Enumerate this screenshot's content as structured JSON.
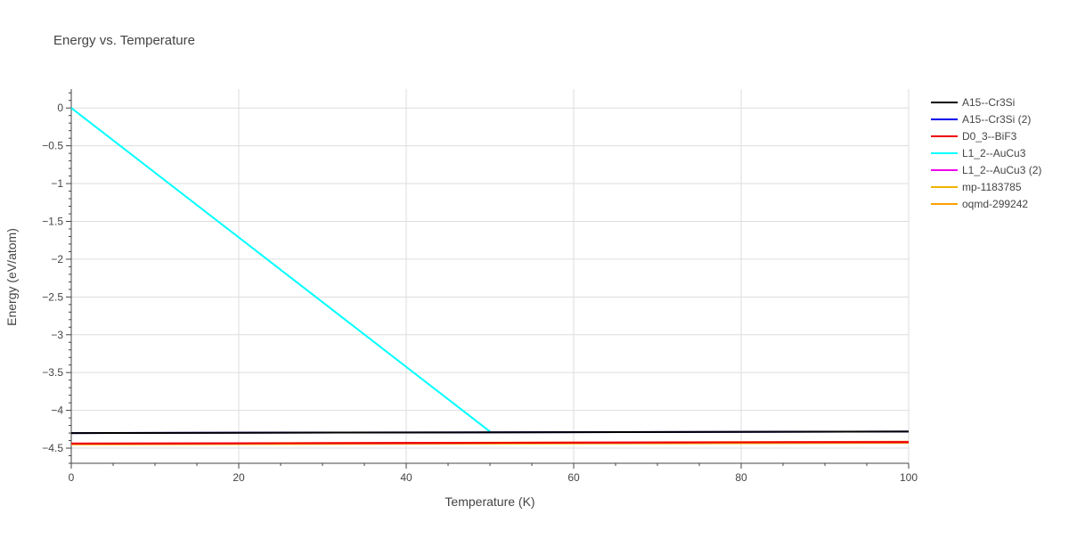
{
  "chart_data": {
    "type": "line",
    "title": "Energy vs. Temperature",
    "xlabel": "Temperature (K)",
    "ylabel": "Energy (eV/atom)",
    "xlim": [
      0,
      100
    ],
    "ylim": [
      -4.7,
      0.25
    ],
    "x_ticks": [
      0,
      20,
      40,
      60,
      80,
      100
    ],
    "x_tick_labels": [
      "0",
      "20",
      "40",
      "60",
      "80",
      "100"
    ],
    "y_ticks": [
      0,
      -0.5,
      -1,
      -1.5,
      -2,
      -2.5,
      -3,
      -3.5,
      -4,
      -4.5
    ],
    "y_tick_labels": [
      "0",
      "−0.5",
      "−1",
      "−1.5",
      "−2",
      "−2.5",
      "−3",
      "−3.5",
      "−4",
      "−4.5"
    ],
    "grid": true,
    "legend_position": "top-right",
    "series": [
      {
        "name": "A15--Cr3Si",
        "color": "#000000",
        "x": [
          0,
          100
        ],
        "y": [
          -4.3,
          -4.28
        ]
      },
      {
        "name": "A15--Cr3Si (2)",
        "color": "#0000ee",
        "x": [
          0,
          100
        ],
        "y": [
          -4.3,
          -4.28
        ]
      },
      {
        "name": "D0_3--BiF3",
        "color": "#ee0000",
        "x": [
          0,
          100
        ],
        "y": [
          -4.44,
          -4.42
        ]
      },
      {
        "name": "L1_2--AuCu3",
        "color": "#00ffff",
        "x": [
          0,
          50
        ],
        "y": [
          0,
          -4.28
        ]
      },
      {
        "name": "L1_2--AuCu3 (2)",
        "color": "#ee00ee",
        "x": [
          0,
          100
        ],
        "y": [
          -4.44,
          -4.42
        ]
      },
      {
        "name": "mp-1183785",
        "color": "#f0b400",
        "x": [
          0,
          100
        ],
        "y": [
          -4.45,
          -4.43
        ]
      },
      {
        "name": "oqmd-299242",
        "color": "#ffa000",
        "x": [
          0,
          100
        ],
        "y": [
          -4.44,
          -4.415
        ]
      }
    ]
  }
}
